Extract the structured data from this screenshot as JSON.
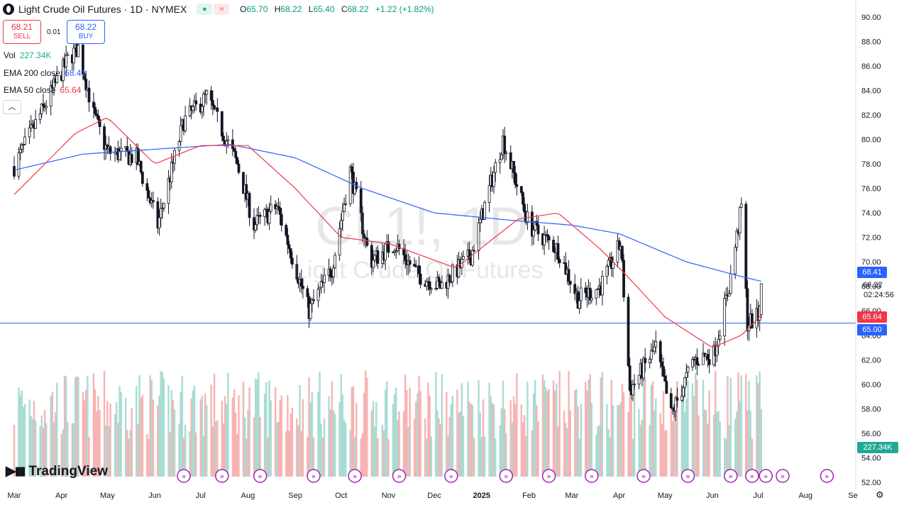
{
  "header": {
    "title": "Light Crude Oil Futures · 1D · NYMEX",
    "open_label": "O",
    "open": "65.70",
    "high_label": "H",
    "high": "68.22",
    "low_label": "L",
    "low": "65.40",
    "close_label": "C",
    "close": "68.22",
    "change": "+1.22 (+1.82%)"
  },
  "trade": {
    "sell_price": "68.21",
    "sell_label": "SELL",
    "spread": "0.01",
    "buy_price": "68.22",
    "buy_label": "BUY"
  },
  "indicators": {
    "vol_label": "Vol",
    "vol_value": "227.34K",
    "ema200_label": "EMA 200 close",
    "ema200_value": "68.41",
    "ema50_label": "EMA 50 close",
    "ema50_value": "65.64"
  },
  "watermark": {
    "symbol": "CL1!, 1D",
    "name": "Light Crude Oil Futures"
  },
  "price_tags": {
    "ema200": "68.41",
    "last": "68.22",
    "countdown": "02:24:56",
    "ema50": "65.64",
    "hline": "65.00",
    "volume": "227.34K"
  },
  "brand": "TradingView",
  "colors": {
    "up": "#089981",
    "down": "#f23645",
    "ema200": "#2962ff",
    "ema50": "#f23645",
    "vol_up": "#a8dcd3",
    "vol_down": "#f7b3b3",
    "hline": "#2962ff"
  },
  "chart_data": {
    "type": "candlestick",
    "title": "Light Crude Oil Futures · 1D · NYMEX",
    "y_ticks": [
      "90.00",
      "88.00",
      "86.00",
      "84.00",
      "82.00",
      "80.00",
      "78.00",
      "76.00",
      "74.00",
      "72.00",
      "70.00",
      "68.00",
      "66.00",
      "64.00",
      "62.00",
      "60.00",
      "58.00",
      "56.00",
      "54.00",
      "52.00"
    ],
    "x_ticks": [
      "Mar",
      "Apr",
      "May",
      "Jun",
      "Jul",
      "Aug",
      "Sep",
      "Oct",
      "Nov",
      "Dec",
      "2025",
      "Feb",
      "Mar",
      "Apr",
      "May",
      "Jun",
      "Jul",
      "Aug",
      "Se"
    ],
    "ylim": [
      52,
      90
    ],
    "horizontal_line": 65.0,
    "anchors": [
      [
        "2024-03-01",
        77.8
      ],
      [
        "2024-03-20",
        82.5
      ],
      [
        "2024-04-05",
        86.5
      ],
      [
        "2024-04-12",
        87.5
      ],
      [
        "2024-04-22",
        82.0
      ],
      [
        "2024-05-01",
        79.0
      ],
      [
        "2024-05-20",
        78.5
      ],
      [
        "2024-06-03",
        73.0
      ],
      [
        "2024-06-20",
        81.5
      ],
      [
        "2024-07-05",
        83.5
      ],
      [
        "2024-07-25",
        78.0
      ],
      [
        "2024-08-05",
        73.0
      ],
      [
        "2024-08-20",
        74.5
      ],
      [
        "2024-09-10",
        66.0
      ],
      [
        "2024-09-25",
        69.5
      ],
      [
        "2024-10-07",
        77.5
      ],
      [
        "2024-10-20",
        70.0
      ],
      [
        "2024-11-05",
        71.5
      ],
      [
        "2024-11-20",
        69.0
      ],
      [
        "2024-12-05",
        68.0
      ],
      [
        "2024-12-25",
        70.5
      ],
      [
        "2025-01-15",
        80.0
      ],
      [
        "2025-02-01",
        73.0
      ],
      [
        "2025-02-20",
        71.0
      ],
      [
        "2025-03-05",
        67.0
      ],
      [
        "2025-03-20",
        68.0
      ],
      [
        "2025-04-02",
        71.5
      ],
      [
        "2025-04-08",
        59.5
      ],
      [
        "2025-04-25",
        63.0
      ],
      [
        "2025-05-05",
        57.5
      ],
      [
        "2025-05-20",
        62.0
      ],
      [
        "2025-06-02",
        62.5
      ],
      [
        "2025-06-12",
        68.0
      ],
      [
        "2025-06-20",
        74.5
      ],
      [
        "2025-06-24",
        65.0
      ],
      [
        "2025-07-01",
        65.5
      ],
      [
        "2025-07-03",
        68.22
      ]
    ],
    "ema200_anchors": [
      [
        "2024-03-01",
        77.5
      ],
      [
        "2024-04-15",
        78.8
      ],
      [
        "2024-06-01",
        79.2
      ],
      [
        "2024-07-20",
        79.6
      ],
      [
        "2024-09-01",
        78.5
      ],
      [
        "2024-10-15",
        76.0
      ],
      [
        "2024-12-01",
        74.0
      ],
      [
        "2025-01-20",
        73.4
      ],
      [
        "2025-03-01",
        73.0
      ],
      [
        "2025-04-01",
        72.3
      ],
      [
        "2025-05-15",
        70.0
      ],
      [
        "2025-06-20",
        68.8
      ],
      [
        "2025-07-03",
        68.41
      ]
    ],
    "ema50_anchors": [
      [
        "2024-03-01",
        75.5
      ],
      [
        "2024-04-10",
        80.5
      ],
      [
        "2024-05-01",
        81.8
      ],
      [
        "2024-06-01",
        78.0
      ],
      [
        "2024-07-01",
        79.5
      ],
      [
        "2024-08-01",
        79.5
      ],
      [
        "2024-09-01",
        76.0
      ],
      [
        "2024-10-01",
        72.0
      ],
      [
        "2024-11-01",
        71.5
      ],
      [
        "2024-12-15",
        69.5
      ],
      [
        "2025-01-25",
        73.5
      ],
      [
        "2025-02-20",
        74.0
      ],
      [
        "2025-03-20",
        71.0
      ],
      [
        "2025-04-05",
        69.0
      ],
      [
        "2025-05-01",
        65.5
      ],
      [
        "2025-06-01",
        63.0
      ],
      [
        "2025-06-20",
        64.0
      ],
      [
        "2025-07-03",
        65.64
      ]
    ],
    "events": [
      "2024-06-20",
      "2024-07-15",
      "2024-08-09",
      "2024-09-13",
      "2024-10-10",
      "2024-11-08",
      "2024-12-12",
      "2025-01-17",
      "2025-02-14",
      "2025-03-14",
      "2025-04-17",
      "2025-05-16",
      "2025-06-13",
      "2025-06-27",
      "2025-07-06",
      "2025-07-17",
      "2025-08-15"
    ]
  }
}
